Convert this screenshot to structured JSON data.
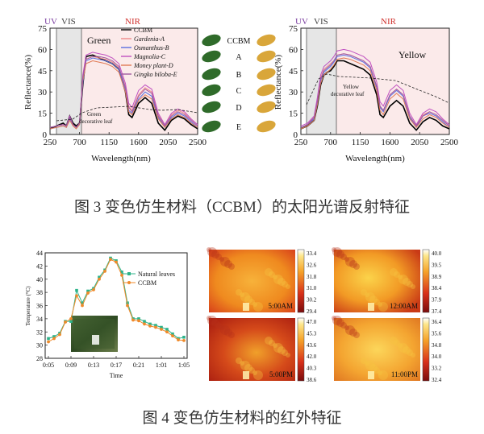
{
  "figure3": {
    "caption": "图 3 变色仿生材料（CCBM）的太阳光谱反射特征",
    "left": {
      "region_labels": {
        "uv": "UV",
        "vis": "VIS",
        "nir": "NIR"
      },
      "inline_title": "Green",
      "note_line1": "Green",
      "note_line2": "decorative leaf",
      "xlabel": "Wavelength(nm)",
      "ylabel": "Reflectance(%)",
      "xticks": [
        "250",
        "700",
        "1150",
        "1600",
        "2050",
        "2500"
      ],
      "yticks": [
        "0",
        "15",
        "30",
        "45",
        "60",
        "75"
      ],
      "legend": [
        {
          "label": "CCBM",
          "color": "#000000"
        },
        {
          "label": "Gardenia-A",
          "color": "#f08a8a"
        },
        {
          "label": "Osmanthus-B",
          "color": "#5a6fe0"
        },
        {
          "label": "Magnolia-C",
          "color": "#c04fc0"
        },
        {
          "label": "Money plant-D",
          "color": "#e07a55"
        },
        {
          "label": "Gingko biloba-E",
          "color": "#a05aa0"
        }
      ]
    },
    "right": {
      "region_labels": {
        "uv": "UV",
        "vis": "VIS",
        "nir": "NIR"
      },
      "inline_title": "Yellow",
      "note_line1": "Yellow",
      "note_line2": "decorative leaf",
      "xlabel": "Wavelength(nm)",
      "ylabel": "Reflectance(%)",
      "xticks": [
        "250",
        "700",
        "1150",
        "1600",
        "2050",
        "2500"
      ],
      "yticks": [
        "0",
        "15",
        "30",
        "45",
        "60",
        "75"
      ]
    },
    "leaf_labels": [
      "CCBM",
      "A",
      "B",
      "C",
      "D",
      "E"
    ],
    "colors": {
      "green_leaf": "#2f6b2a",
      "yellow_leaf": "#d9a63a",
      "vis_band": "#e6e6e6",
      "nir_band": "#fbeaea",
      "uv_label": "#7a3ea0",
      "nir_label": "#d0312d"
    }
  },
  "figure4": {
    "caption": "图 4 变色仿生材料的红外特征",
    "chart": {
      "xlabel": "Time",
      "ylabel": "Temperature (°C)",
      "xticks": [
        "0:05",
        "0:09",
        "0:13",
        "0:17",
        "0:21",
        "1:01",
        "1:05"
      ],
      "yticks": [
        "28",
        "30",
        "32",
        "34",
        "36",
        "38",
        "40",
        "42",
        "44"
      ],
      "legend": [
        {
          "label": "Natural leaves",
          "color": "#2db38a"
        },
        {
          "label": "CCBM",
          "color": "#f08a2a"
        }
      ]
    },
    "thermal": [
      {
        "time": "5:00AM",
        "scale": [
          "33.4",
          "32.6",
          "31.8",
          "31.0",
          "30.2",
          "29.4"
        ]
      },
      {
        "time": "12:00AM",
        "scale": [
          "40.0",
          "39.5",
          "38.9",
          "38.4",
          "37.9",
          "37.4"
        ]
      },
      {
        "time": "5:00PM",
        "scale": [
          "47.0",
          "45.3",
          "43.6",
          "42.0",
          "40.3",
          "38.6"
        ]
      },
      {
        "time": "11:00PM",
        "scale": [
          "36.4",
          "35.6",
          "34.8",
          "34.0",
          "33.2",
          "32.4"
        ]
      }
    ]
  },
  "chart_data": [
    {
      "type": "line",
      "xlabel": "Wavelength(nm)",
      "ylabel": "Reflectance(%)",
      "xlim": [
        250,
        2500
      ],
      "ylim": [
        0,
        75
      ],
      "x": [
        250,
        350,
        450,
        500,
        550,
        600,
        650,
        700,
        750,
        800,
        900,
        1000,
        1100,
        1200,
        1300,
        1400,
        1450,
        1500,
        1600,
        1700,
        1800,
        1900,
        2000,
        2100,
        2200,
        2300,
        2400,
        2500
      ],
      "series": [
        {
          "name": "CCBM",
          "values": [
            4,
            6,
            8,
            6,
            13,
            8,
            6,
            8,
            35,
            55,
            56,
            54,
            52,
            50,
            46,
            30,
            14,
            12,
            22,
            26,
            22,
            8,
            3,
            10,
            13,
            11,
            7,
            4
          ]
        },
        {
          "name": "Gardenia-A",
          "values": [
            5,
            6,
            7,
            6,
            12,
            7,
            5,
            8,
            40,
            53,
            55,
            54,
            53,
            51,
            47,
            34,
            20,
            17,
            28,
            33,
            30,
            14,
            6,
            14,
            17,
            15,
            10,
            6
          ]
        },
        {
          "name": "Osmanthus-B",
          "values": [
            4,
            5,
            6,
            5,
            11,
            7,
            5,
            7,
            36,
            52,
            54,
            53,
            52,
            50,
            46,
            31,
            17,
            15,
            25,
            30,
            27,
            12,
            5,
            12,
            15,
            13,
            9,
            5
          ]
        },
        {
          "name": "Magnolia-C",
          "values": [
            5,
            6,
            7,
            6,
            13,
            7,
            5,
            8,
            42,
            56,
            58,
            57,
            56,
            54,
            50,
            36,
            22,
            19,
            31,
            35,
            32,
            15,
            7,
            15,
            18,
            16,
            11,
            7
          ]
        },
        {
          "name": "Money plant-D",
          "values": [
            4,
            5,
            6,
            5,
            10,
            6,
            4,
            7,
            38,
            50,
            52,
            51,
            50,
            48,
            44,
            30,
            16,
            14,
            24,
            28,
            25,
            11,
            5,
            11,
            14,
            12,
            8,
            5
          ]
        },
        {
          "name": "Gingko biloba-E",
          "values": [
            5,
            6,
            7,
            6,
            12,
            7,
            5,
            8,
            40,
            53,
            55,
            55,
            54,
            52,
            48,
            33,
            19,
            16,
            27,
            32,
            29,
            13,
            6,
            13,
            16,
            14,
            10,
            6
          ]
        }
      ]
    },
    {
      "type": "line",
      "xlabel": "Wavelength(nm)",
      "ylabel": "Reflectance(%)",
      "xlim": [
        250,
        2500
      ],
      "ylim": [
        0,
        75
      ],
      "x": [
        250,
        350,
        450,
        500,
        550,
        600,
        650,
        700,
        750,
        800,
        900,
        1000,
        1100,
        1200,
        1300,
        1400,
        1450,
        1500,
        1600,
        1700,
        1800,
        1900,
        2000,
        2100,
        2200,
        2300,
        2400,
        2500
      ],
      "series": [
        {
          "name": "CCBM",
          "values": [
            4,
            6,
            10,
            20,
            35,
            42,
            44,
            45,
            48,
            52,
            52,
            50,
            48,
            46,
            42,
            28,
            14,
            12,
            20,
            24,
            20,
            8,
            3,
            9,
            12,
            10,
            6,
            4
          ]
        },
        {
          "name": "A",
          "values": [
            5,
            7,
            12,
            24,
            40,
            46,
            48,
            50,
            52,
            56,
            57,
            56,
            54,
            52,
            48,
            34,
            20,
            17,
            28,
            32,
            28,
            13,
            6,
            14,
            16,
            14,
            10,
            6
          ]
        },
        {
          "name": "B",
          "values": [
            5,
            7,
            11,
            22,
            38,
            44,
            46,
            48,
            51,
            55,
            56,
            55,
            53,
            51,
            47,
            33,
            19,
            16,
            27,
            31,
            27,
            12,
            5,
            13,
            15,
            13,
            9,
            5
          ]
        },
        {
          "name": "C",
          "values": [
            6,
            8,
            13,
            26,
            42,
            48,
            50,
            52,
            55,
            59,
            60,
            59,
            57,
            55,
            51,
            37,
            23,
            20,
            31,
            35,
            31,
            15,
            7,
            15,
            18,
            16,
            11,
            7
          ]
        },
        {
          "name": "D",
          "values": [
            4,
            6,
            10,
            21,
            36,
            42,
            44,
            46,
            49,
            53,
            54,
            53,
            51,
            49,
            45,
            31,
            17,
            14,
            25,
            29,
            25,
            11,
            5,
            11,
            14,
            12,
            8,
            5
          ]
        },
        {
          "name": "E",
          "values": [
            5,
            7,
            12,
            23,
            39,
            45,
            47,
            49,
            52,
            56,
            57,
            56,
            54,
            52,
            48,
            34,
            20,
            17,
            28,
            32,
            28,
            13,
            6,
            13,
            16,
            14,
            10,
            6
          ]
        }
      ]
    },
    {
      "type": "line",
      "xlabel": "Time",
      "ylabel": "Temperature (°C)",
      "ylim": [
        28,
        44
      ],
      "categories": [
        "0:05",
        "0:06",
        "0:07",
        "0:08",
        "0:09",
        "0:10",
        "0:11",
        "0:12",
        "0:13",
        "0:14",
        "0:15",
        "0:16",
        "0:17",
        "0:18",
        "0:19",
        "0:20",
        "0:21",
        "0:22",
        "0:23",
        "1:00",
        "1:01",
        "1:02",
        "1:03",
        "1:04",
        "1:05"
      ],
      "series": [
        {
          "name": "Natural leaves",
          "values": [
            31.0,
            31.3,
            31.8,
            33.6,
            33.6,
            38.3,
            36.4,
            38.2,
            38.6,
            40.3,
            41.4,
            43.2,
            42.8,
            41.1,
            36.4,
            34.0,
            34.0,
            33.6,
            33.2,
            33.0,
            32.7,
            32.4,
            31.7,
            31.0,
            31.2
          ]
        },
        {
          "name": "CCBM",
          "values": [
            30.5,
            31.0,
            31.6,
            33.5,
            34.0,
            37.5,
            36.0,
            37.9,
            38.4,
            40.0,
            41.2,
            43.0,
            42.6,
            40.6,
            36.0,
            33.8,
            33.7,
            33.2,
            32.9,
            32.7,
            32.4,
            32.0,
            31.4,
            30.8,
            30.7
          ]
        }
      ]
    }
  ]
}
